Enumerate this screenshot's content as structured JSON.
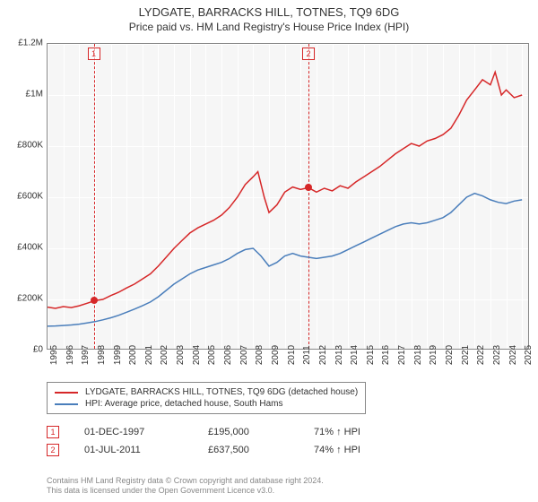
{
  "title": "LYDGATE, BARRACKS HILL, TOTNES, TQ9 6DG",
  "subtitle": "Price paid vs. HM Land Registry's House Price Index (HPI)",
  "chart": {
    "type": "line",
    "background_color": "#f6f6f6",
    "grid_color": "#ffffff",
    "axis_color": "#888888",
    "x_years": [
      1995,
      1996,
      1997,
      1998,
      1999,
      2000,
      2001,
      2002,
      2003,
      2004,
      2005,
      2006,
      2007,
      2008,
      2009,
      2010,
      2011,
      2012,
      2013,
      2014,
      2015,
      2016,
      2017,
      2018,
      2019,
      2020,
      2021,
      2022,
      2023,
      2024,
      2025
    ],
    "xlim": [
      1995,
      2025.5
    ],
    "ylim": [
      0,
      1200000
    ],
    "ytick_step": 200000,
    "ytick_labels": [
      "£0",
      "£200K",
      "£400K",
      "£600K",
      "£800K",
      "£1M",
      "£1.2M"
    ],
    "series": [
      {
        "name": "detached",
        "label": "LYDGATE, BARRACKS HILL, TOTNES, TQ9 6DG (detached house)",
        "color": "#d62728",
        "line_width": 1.5,
        "data": [
          [
            1995,
            170000
          ],
          [
            1995.5,
            165000
          ],
          [
            1996,
            172000
          ],
          [
            1996.5,
            168000
          ],
          [
            1997,
            175000
          ],
          [
            1997.5,
            185000
          ],
          [
            1998,
            195000
          ],
          [
            1998.5,
            200000
          ],
          [
            1999,
            215000
          ],
          [
            1999.5,
            228000
          ],
          [
            2000,
            245000
          ],
          [
            2000.5,
            260000
          ],
          [
            2001,
            280000
          ],
          [
            2001.5,
            300000
          ],
          [
            2002,
            330000
          ],
          [
            2002.5,
            365000
          ],
          [
            2003,
            400000
          ],
          [
            2003.5,
            430000
          ],
          [
            2004,
            460000
          ],
          [
            2004.5,
            480000
          ],
          [
            2005,
            495000
          ],
          [
            2005.5,
            510000
          ],
          [
            2006,
            530000
          ],
          [
            2006.5,
            560000
          ],
          [
            2007,
            600000
          ],
          [
            2007.5,
            650000
          ],
          [
            2008,
            680000
          ],
          [
            2008.3,
            700000
          ],
          [
            2008.7,
            600000
          ],
          [
            2009,
            540000
          ],
          [
            2009.5,
            570000
          ],
          [
            2010,
            620000
          ],
          [
            2010.5,
            640000
          ],
          [
            2011,
            630000
          ],
          [
            2011.5,
            637500
          ],
          [
            2012,
            620000
          ],
          [
            2012.5,
            635000
          ],
          [
            2013,
            625000
          ],
          [
            2013.5,
            645000
          ],
          [
            2014,
            635000
          ],
          [
            2014.5,
            660000
          ],
          [
            2015,
            680000
          ],
          [
            2015.5,
            700000
          ],
          [
            2016,
            720000
          ],
          [
            2016.5,
            745000
          ],
          [
            2017,
            770000
          ],
          [
            2017.5,
            790000
          ],
          [
            2018,
            810000
          ],
          [
            2018.5,
            800000
          ],
          [
            2019,
            820000
          ],
          [
            2019.5,
            830000
          ],
          [
            2020,
            845000
          ],
          [
            2020.5,
            870000
          ],
          [
            2021,
            920000
          ],
          [
            2021.5,
            980000
          ],
          [
            2022,
            1020000
          ],
          [
            2022.5,
            1060000
          ],
          [
            2023,
            1040000
          ],
          [
            2023.3,
            1090000
          ],
          [
            2023.7,
            1000000
          ],
          [
            2024,
            1020000
          ],
          [
            2024.5,
            990000
          ],
          [
            2025,
            1000000
          ]
        ]
      },
      {
        "name": "hpi",
        "label": "HPI: Average price, detached house, South Hams",
        "color": "#4a7ebb",
        "line_width": 1.5,
        "data": [
          [
            1995,
            95000
          ],
          [
            1995.5,
            96000
          ],
          [
            1996,
            98000
          ],
          [
            1996.5,
            100000
          ],
          [
            1997,
            103000
          ],
          [
            1997.5,
            108000
          ],
          [
            1998,
            113000
          ],
          [
            1998.5,
            120000
          ],
          [
            1999,
            128000
          ],
          [
            1999.5,
            138000
          ],
          [
            2000,
            150000
          ],
          [
            2000.5,
            162000
          ],
          [
            2001,
            175000
          ],
          [
            2001.5,
            190000
          ],
          [
            2002,
            210000
          ],
          [
            2002.5,
            235000
          ],
          [
            2003,
            260000
          ],
          [
            2003.5,
            280000
          ],
          [
            2004,
            300000
          ],
          [
            2004.5,
            315000
          ],
          [
            2005,
            325000
          ],
          [
            2005.5,
            335000
          ],
          [
            2006,
            345000
          ],
          [
            2006.5,
            360000
          ],
          [
            2007,
            380000
          ],
          [
            2007.5,
            395000
          ],
          [
            2008,
            400000
          ],
          [
            2008.5,
            370000
          ],
          [
            2009,
            330000
          ],
          [
            2009.5,
            345000
          ],
          [
            2010,
            370000
          ],
          [
            2010.5,
            380000
          ],
          [
            2011,
            370000
          ],
          [
            2011.5,
            365000
          ],
          [
            2012,
            360000
          ],
          [
            2012.5,
            365000
          ],
          [
            2013,
            370000
          ],
          [
            2013.5,
            380000
          ],
          [
            2014,
            395000
          ],
          [
            2014.5,
            410000
          ],
          [
            2015,
            425000
          ],
          [
            2015.5,
            440000
          ],
          [
            2016,
            455000
          ],
          [
            2016.5,
            470000
          ],
          [
            2017,
            485000
          ],
          [
            2017.5,
            495000
          ],
          [
            2018,
            500000
          ],
          [
            2018.5,
            495000
          ],
          [
            2019,
            500000
          ],
          [
            2019.5,
            510000
          ],
          [
            2020,
            520000
          ],
          [
            2020.5,
            540000
          ],
          [
            2021,
            570000
          ],
          [
            2021.5,
            600000
          ],
          [
            2022,
            615000
          ],
          [
            2022.5,
            605000
          ],
          [
            2023,
            590000
          ],
          [
            2023.5,
            580000
          ],
          [
            2024,
            575000
          ],
          [
            2024.5,
            585000
          ],
          [
            2025,
            590000
          ]
        ]
      }
    ],
    "sale_markers": [
      {
        "index": "1",
        "year": 1997.92,
        "value": 195000,
        "color": "#d62728"
      },
      {
        "index": "2",
        "year": 2011.5,
        "value": 637500,
        "color": "#d62728"
      }
    ]
  },
  "legend": {
    "items": [
      {
        "color": "#d62728",
        "label": "LYDGATE, BARRACKS HILL, TOTNES, TQ9 6DG (detached house)"
      },
      {
        "color": "#4a7ebb",
        "label": "HPI: Average price, detached house, South Hams"
      }
    ]
  },
  "sales": [
    {
      "marker": "1",
      "marker_color": "#d62728",
      "date": "01-DEC-1997",
      "price": "£195,000",
      "pct": "71% ↑ HPI"
    },
    {
      "marker": "2",
      "marker_color": "#d62728",
      "date": "01-JUL-2011",
      "price": "£637,500",
      "pct": "74% ↑ HPI"
    }
  ],
  "footer": {
    "line1": "Contains HM Land Registry data © Crown copyright and database right 2024.",
    "line2": "This data is licensed under the Open Government Licence v3.0."
  }
}
